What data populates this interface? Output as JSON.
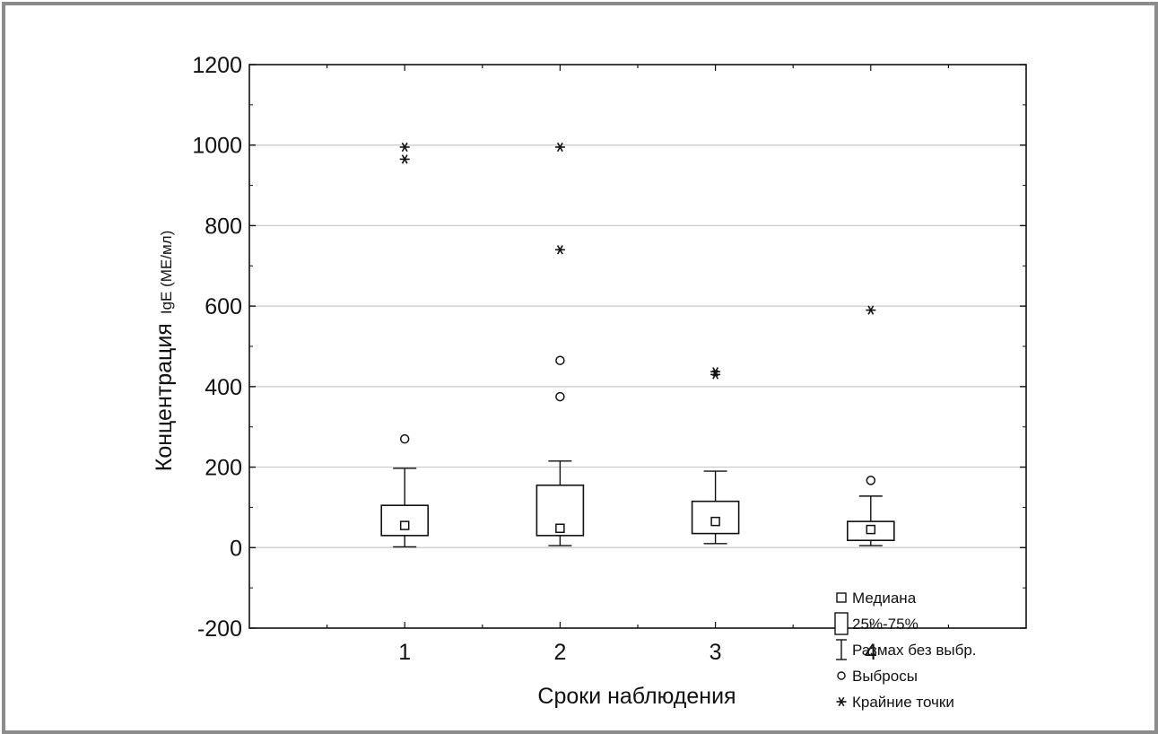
{
  "chart_data": {
    "type": "box",
    "xlabel": "Сроки наблюдения",
    "ylabel_main": "Концентрация",
    "ylabel_sub": "IgE (МЕ/мл)",
    "ylim": [
      -200,
      1200
    ],
    "yticks": [
      -200,
      0,
      200,
      400,
      600,
      800,
      1000,
      1200
    ],
    "xlim": [
      0,
      5
    ],
    "categories": [
      "1",
      "2",
      "3",
      "4"
    ],
    "grid": "horizontal",
    "boxes": [
      {
        "category": "1",
        "median": 55,
        "q1": 30,
        "q3": 105,
        "whisker_low": 2,
        "whisker_high": 197,
        "outliers": [
          270
        ],
        "extremes": [
          995,
          965
        ]
      },
      {
        "category": "2",
        "median": 48,
        "q1": 30,
        "q3": 155,
        "whisker_low": 5,
        "whisker_high": 215,
        "outliers": [
          465,
          375
        ],
        "extremes": [
          995,
          740
        ]
      },
      {
        "category": "3",
        "median": 65,
        "q1": 35,
        "q3": 115,
        "whisker_low": 10,
        "whisker_high": 190,
        "outliers": [],
        "extremes": [
          437,
          430
        ]
      },
      {
        "category": "4",
        "median": 45,
        "q1": 18,
        "q3": 65,
        "whisker_low": 5,
        "whisker_high": 128,
        "outliers": [
          167
        ],
        "extremes": [
          590
        ]
      }
    ],
    "legend": {
      "placement": "bottom-right",
      "items": [
        {
          "key": "median",
          "label": "Медиана"
        },
        {
          "key": "iqr",
          "label": "25%-75%"
        },
        {
          "key": "range",
          "label": "Размах без выбр."
        },
        {
          "key": "outlier",
          "label": "Выбросы"
        },
        {
          "key": "extreme",
          "label": "Крайние точки"
        }
      ]
    },
    "colors": {
      "frame": "#8c8c8c",
      "ink": "#111111",
      "grid": "#c8c8c8"
    }
  }
}
